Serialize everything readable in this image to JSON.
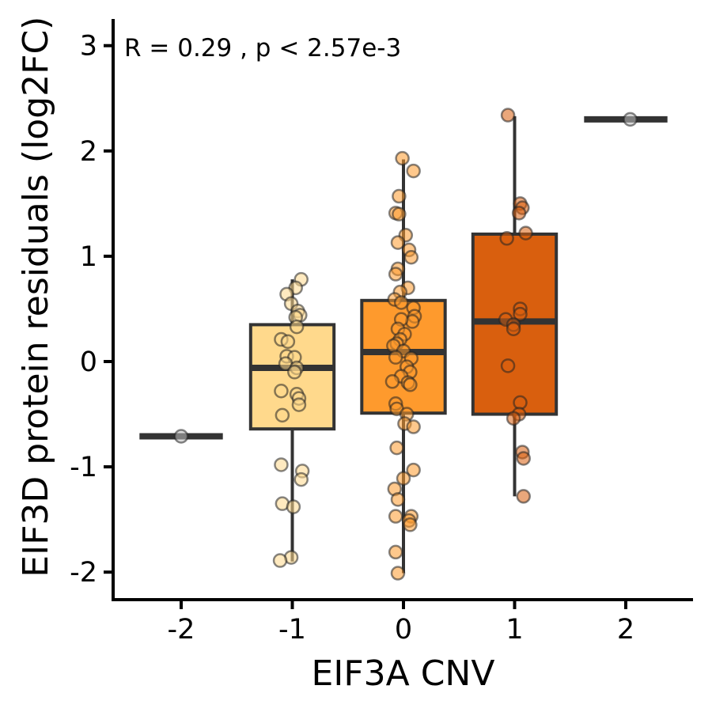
{
  "chart_data": {
    "type": "box",
    "xlabel": "EIF3A CNV",
    "ylabel": "EIF3D protein residuals (log2FC)",
    "annotation": "R = 0.29 ,  p <  2.57e-3",
    "categories": [
      "-2",
      "-1",
      "0",
      "1",
      "2"
    ],
    "x_ticks": [
      "-2",
      "-1",
      "0",
      "1",
      "2"
    ],
    "y_ticks": [
      "-2",
      "-1",
      "0",
      "1",
      "2",
      "3"
    ],
    "ylim": [
      -2.25,
      3.25
    ],
    "xlim": [
      -2.6,
      2.6
    ],
    "grid": false,
    "legend": "none",
    "colors": {
      "-2": "#ffffff",
      "-1": "#ffd98c",
      "0": "#fe9a2d",
      "1": "#d95f0e",
      "2": "#ffffff",
      "box_line": "#333333",
      "axis": "#000000"
    },
    "boxes": [
      {
        "group": "-2",
        "x": -2,
        "q1": -0.71,
        "median": -0.71,
        "q3": -0.71,
        "whisker_low": -0.71,
        "whisker_high": -0.71
      },
      {
        "group": "-1",
        "x": -1,
        "q1": -0.64,
        "median": -0.06,
        "q3": 0.35,
        "whisker_low": -1.9,
        "whisker_high": 0.78
      },
      {
        "group": "0",
        "x": 0,
        "q1": -0.49,
        "median": 0.09,
        "q3": 0.58,
        "whisker_low": -2.01,
        "whisker_high": 1.92
      },
      {
        "group": "1",
        "x": 1,
        "q1": -0.5,
        "median": 0.38,
        "q3": 1.21,
        "whisker_low": -1.28,
        "whisker_high": 2.33
      },
      {
        "group": "2",
        "x": 2,
        "q1": 2.3,
        "median": 2.3,
        "q3": 2.3,
        "whisker_low": 2.3,
        "whisker_high": 2.3
      }
    ],
    "points": [
      {
        "group": "-2",
        "x": -2.0,
        "y": -0.71
      },
      {
        "group": "-1",
        "x": -0.92,
        "y": 0.78
      },
      {
        "group": "-1",
        "x": -0.97,
        "y": 0.7
      },
      {
        "group": "-1",
        "x": -1.05,
        "y": 0.64
      },
      {
        "group": "-1",
        "x": -1.01,
        "y": 0.55
      },
      {
        "group": "-1",
        "x": -0.95,
        "y": 0.48
      },
      {
        "group": "-1",
        "x": -0.93,
        "y": 0.44
      },
      {
        "group": "-1",
        "x": -0.97,
        "y": 0.42
      },
      {
        "group": "-1",
        "x": -0.96,
        "y": 0.33
      },
      {
        "group": "-1",
        "x": -1.1,
        "y": 0.21
      },
      {
        "group": "-1",
        "x": -1.04,
        "y": 0.19
      },
      {
        "group": "-1",
        "x": -1.05,
        "y": 0.05
      },
      {
        "group": "-1",
        "x": -0.98,
        "y": 0.04
      },
      {
        "group": "-1",
        "x": -1.06,
        "y": -0.02
      },
      {
        "group": "-1",
        "x": -0.96,
        "y": -0.06
      },
      {
        "group": "-1",
        "x": -0.98,
        "y": -0.1
      },
      {
        "group": "-1",
        "x": -1.1,
        "y": -0.28
      },
      {
        "group": "-1",
        "x": -0.96,
        "y": -0.31
      },
      {
        "group": "-1",
        "x": -0.94,
        "y": -0.35
      },
      {
        "group": "-1",
        "x": -0.94,
        "y": -0.41
      },
      {
        "group": "-1",
        "x": -1.09,
        "y": -0.51
      },
      {
        "group": "-1",
        "x": -1.1,
        "y": -0.98
      },
      {
        "group": "-1",
        "x": -0.91,
        "y": -1.04
      },
      {
        "group": "-1",
        "x": -0.92,
        "y": -1.12
      },
      {
        "group": "-1",
        "x": -1.09,
        "y": -1.35
      },
      {
        "group": "-1",
        "x": -0.99,
        "y": -1.38
      },
      {
        "group": "-1",
        "x": -1.01,
        "y": -1.86
      },
      {
        "group": "-1",
        "x": -1.11,
        "y": -1.89
      },
      {
        "group": "0",
        "x": -0.01,
        "y": 1.93
      },
      {
        "group": "0",
        "x": 0.09,
        "y": 1.81
      },
      {
        "group": "0",
        "x": -0.04,
        "y": 1.57
      },
      {
        "group": "0",
        "x": -0.07,
        "y": 1.41
      },
      {
        "group": "0",
        "x": -0.04,
        "y": 1.4
      },
      {
        "group": "0",
        "x": 0.02,
        "y": 1.2
      },
      {
        "group": "0",
        "x": -0.05,
        "y": 1.13
      },
      {
        "group": "0",
        "x": 0.05,
        "y": 1.06
      },
      {
        "group": "0",
        "x": 0.07,
        "y": 0.99
      },
      {
        "group": "0",
        "x": -0.05,
        "y": 0.88
      },
      {
        "group": "0",
        "x": -0.07,
        "y": 0.83
      },
      {
        "group": "0",
        "x": 0.04,
        "y": 0.7
      },
      {
        "group": "0",
        "x": -0.03,
        "y": 0.66
      },
      {
        "group": "0",
        "x": -0.08,
        "y": 0.59
      },
      {
        "group": "0",
        "x": -0.02,
        "y": 0.56
      },
      {
        "group": "0",
        "x": 0.09,
        "y": 0.51
      },
      {
        "group": "0",
        "x": 0.1,
        "y": 0.43
      },
      {
        "group": "0",
        "x": 0.08,
        "y": 0.38
      },
      {
        "group": "0",
        "x": -0.02,
        "y": 0.4
      },
      {
        "group": "0",
        "x": -0.05,
        "y": 0.31
      },
      {
        "group": "0",
        "x": 0.01,
        "y": 0.26
      },
      {
        "group": "0",
        "x": -0.03,
        "y": 0.21
      },
      {
        "group": "0",
        "x": -0.06,
        "y": 0.17
      },
      {
        "group": "0",
        "x": -0.09,
        "y": 0.15
      },
      {
        "group": "0",
        "x": 0.0,
        "y": 0.1
      },
      {
        "group": "0",
        "x": -0.07,
        "y": 0.04
      },
      {
        "group": "0",
        "x": 0.07,
        "y": 0.03
      },
      {
        "group": "0",
        "x": 0.03,
        "y": -0.05
      },
      {
        "group": "0",
        "x": 0.06,
        "y": -0.1
      },
      {
        "group": "0",
        "x": -0.02,
        "y": -0.14
      },
      {
        "group": "0",
        "x": 0.04,
        "y": -0.2
      },
      {
        "group": "0",
        "x": -0.1,
        "y": -0.19
      },
      {
        "group": "0",
        "x": 0.06,
        "y": -0.22
      },
      {
        "group": "0",
        "x": -0.07,
        "y": -0.4
      },
      {
        "group": "0",
        "x": -0.06,
        "y": -0.45
      },
      {
        "group": "0",
        "x": 0.03,
        "y": -0.5
      },
      {
        "group": "0",
        "x": 0.01,
        "y": -0.59
      },
      {
        "group": "0",
        "x": 0.09,
        "y": -0.62
      },
      {
        "group": "0",
        "x": -0.06,
        "y": -0.82
      },
      {
        "group": "0",
        "x": 0.09,
        "y": -1.03
      },
      {
        "group": "0",
        "x": 0.0,
        "y": -1.11
      },
      {
        "group": "0",
        "x": -0.08,
        "y": -1.21
      },
      {
        "group": "0",
        "x": -0.05,
        "y": -1.31
      },
      {
        "group": "0",
        "x": 0.07,
        "y": -1.47
      },
      {
        "group": "0",
        "x": -0.07,
        "y": -1.47
      },
      {
        "group": "0",
        "x": 0.05,
        "y": -1.51
      },
      {
        "group": "0",
        "x": 0.06,
        "y": -1.55
      },
      {
        "group": "0",
        "x": -0.07,
        "y": -1.81
      },
      {
        "group": "0",
        "x": -0.05,
        "y": -2.01
      },
      {
        "group": "1",
        "x": 0.94,
        "y": 2.34
      },
      {
        "group": "1",
        "x": 1.05,
        "y": 1.5
      },
      {
        "group": "1",
        "x": 1.07,
        "y": 1.46
      },
      {
        "group": "1",
        "x": 1.04,
        "y": 1.41
      },
      {
        "group": "1",
        "x": 1.1,
        "y": 1.22
      },
      {
        "group": "1",
        "x": 0.93,
        "y": 1.17
      },
      {
        "group": "1",
        "x": 1.05,
        "y": 0.5
      },
      {
        "group": "1",
        "x": 1.05,
        "y": 0.45
      },
      {
        "group": "1",
        "x": 0.92,
        "y": 0.4
      },
      {
        "group": "1",
        "x": 0.99,
        "y": 0.35
      },
      {
        "group": "1",
        "x": 0.99,
        "y": 0.31
      },
      {
        "group": "1",
        "x": 0.94,
        "y": -0.04
      },
      {
        "group": "1",
        "x": 1.05,
        "y": -0.39
      },
      {
        "group": "1",
        "x": 1.04,
        "y": -0.5
      },
      {
        "group": "1",
        "x": 0.99,
        "y": -0.54
      },
      {
        "group": "1",
        "x": 1.07,
        "y": -0.86
      },
      {
        "group": "1",
        "x": 1.08,
        "y": -0.92
      },
      {
        "group": "1",
        "x": 1.08,
        "y": -1.28
      },
      {
        "group": "2",
        "x": 2.04,
        "y": 2.3
      }
    ]
  }
}
